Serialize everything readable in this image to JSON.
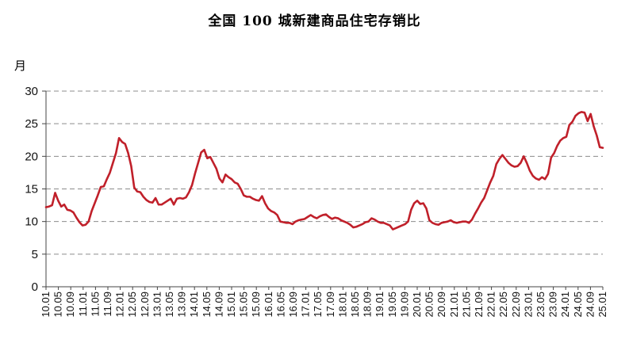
{
  "chart_data": {
    "type": "line",
    "title": "全国 100 城新建商品住宅存销比",
    "ylabel": "月",
    "xlabel": "",
    "ylim": [
      0,
      30
    ],
    "y_ticks": [
      "0",
      "5",
      "10",
      "15",
      "20",
      "25",
      "30"
    ],
    "grid": "horizontal-dashed",
    "legend": "none",
    "line_color": "#c0202a",
    "x_ticks": [
      "10.01",
      "10.05",
      "10.09",
      "11.01",
      "11.05",
      "11.09",
      "12.01",
      "12.05",
      "12.09",
      "13.01",
      "13.05",
      "13.09",
      "14.01",
      "14.05",
      "14.09",
      "15.01",
      "15.05",
      "15.09",
      "16.01",
      "16.05",
      "16.09",
      "17.01",
      "17.05",
      "17.09",
      "18.01",
      "18.05",
      "18.09",
      "19.01",
      "19.05",
      "19.09",
      "20.01",
      "20.05",
      "20.09",
      "21.01",
      "21.05",
      "21.09",
      "22.01",
      "22.05",
      "22.09",
      "23.01",
      "23.05",
      "23.09",
      "24.01",
      "24.05",
      "24.09",
      "25.01"
    ],
    "series": [
      {
        "values": [
          12.2,
          12.3,
          12.5,
          14.4,
          13.2,
          12.3,
          12.6,
          11.8,
          11.7,
          11.4,
          10.6,
          9.9,
          9.4,
          9.5,
          10.0,
          11.6,
          12.8,
          14.0,
          15.3,
          15.4,
          16.5,
          17.5,
          19.0,
          20.5,
          22.8,
          22.2,
          21.9,
          20.5,
          18.5,
          15.2,
          14.6,
          14.5,
          13.8,
          13.3,
          13.0,
          12.9,
          13.6,
          12.6,
          12.6,
          12.9,
          13.2,
          13.5,
          12.6,
          13.5,
          13.6,
          13.5,
          13.7,
          14.5,
          15.6,
          17.4,
          19.0,
          20.6,
          21.0,
          19.7,
          19.9,
          19.0,
          18.1,
          16.6,
          16.0,
          17.2,
          16.8,
          16.5,
          16.0,
          15.8,
          15.0,
          14.0,
          13.8,
          13.8,
          13.5,
          13.3,
          13.2,
          13.9,
          12.8,
          12.0,
          11.6,
          11.4,
          11.0,
          10.0,
          9.9,
          9.8,
          9.8,
          9.6,
          10.0,
          10.2,
          10.3,
          10.4,
          10.7,
          11.0,
          10.7,
          10.5,
          10.8,
          11.0,
          11.1,
          10.7,
          10.4,
          10.6,
          10.5,
          10.2,
          10.0,
          9.8,
          9.5,
          9.1,
          9.2,
          9.4,
          9.6,
          9.9,
          10.0,
          10.5,
          10.3,
          10.0,
          9.8,
          9.8,
          9.6,
          9.4,
          8.8,
          9.0,
          9.2,
          9.4,
          9.6,
          10.0,
          11.8,
          12.8,
          13.2,
          12.7,
          12.8,
          12.0,
          10.2,
          9.8,
          9.6,
          9.5,
          9.8,
          9.9,
          10.0,
          10.2,
          9.9,
          9.8,
          9.9,
          10.0,
          10.0,
          9.8,
          10.3,
          11.2,
          12.0,
          12.9,
          13.6,
          14.8,
          16.0,
          17.0,
          18.8,
          19.6,
          20.2,
          19.6,
          19.0,
          18.6,
          18.4,
          18.5,
          19.0,
          20.0,
          19.0,
          17.8,
          17.0,
          16.6,
          16.4,
          16.8,
          16.5,
          17.3,
          19.8,
          20.5,
          21.6,
          22.4,
          22.8,
          23.0,
          24.8,
          25.3,
          26.2,
          26.6,
          26.8,
          26.7,
          25.4,
          26.5,
          24.6,
          23.2,
          21.4,
          21.3
        ]
      }
    ]
  }
}
